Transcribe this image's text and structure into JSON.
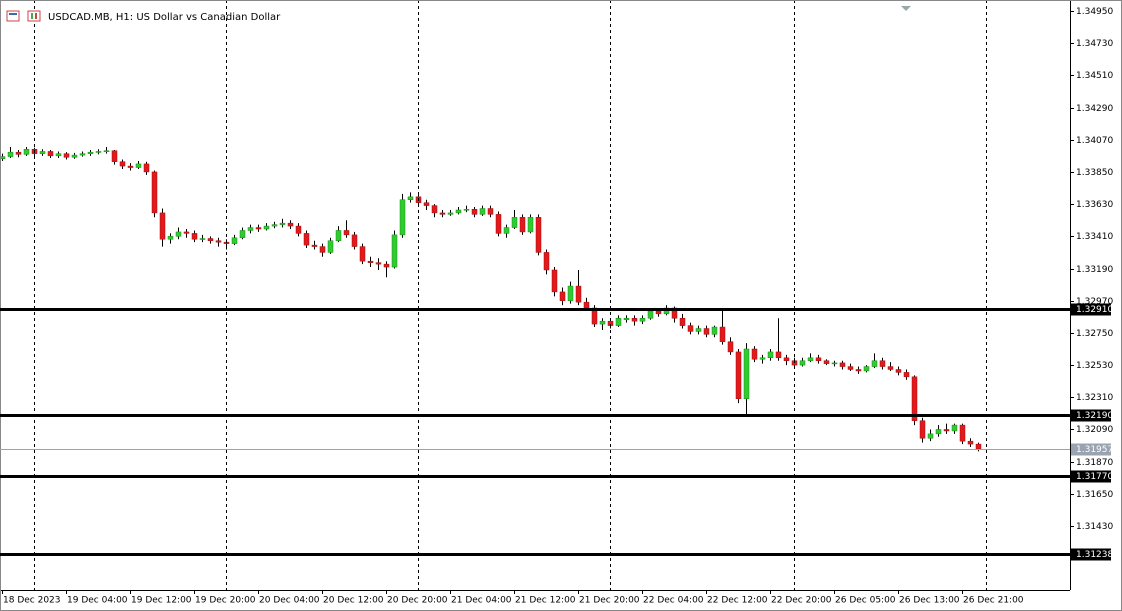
{
  "chart_data": {
    "type": "candlestick",
    "title": "USDCAD.MB, H1:  US Dollar vs Canadian Dollar",
    "up_color": "#2ecc2e",
    "down_color": "#e3191b",
    "grid": false,
    "ylim": [
      1.30993,
      1.35025
    ],
    "yticks": [
      {
        "value": 1.3495,
        "label": "1.34950"
      },
      {
        "value": 1.3473,
        "label": "1.34730"
      },
      {
        "value": 1.3451,
        "label": "1.34510"
      },
      {
        "value": 1.3429,
        "label": "1.34290"
      },
      {
        "value": 1.3407,
        "label": "1.34070"
      },
      {
        "value": 1.3385,
        "label": "1.33850"
      },
      {
        "value": 1.3363,
        "label": "1.33630"
      },
      {
        "value": 1.3341,
        "label": "1.33410"
      },
      {
        "value": 1.3319,
        "label": "1.33190"
      },
      {
        "value": 1.3297,
        "label": "1.32970"
      },
      {
        "value": 1.3275,
        "label": "1.32750"
      },
      {
        "value": 1.3253,
        "label": "1.32530"
      },
      {
        "value": 1.3231,
        "label": "1.32310"
      },
      {
        "value": 1.3209,
        "label": "1.32090"
      },
      {
        "value": 1.3187,
        "label": "1.31870"
      },
      {
        "value": 1.3165,
        "label": "1.31650"
      },
      {
        "value": 1.3143,
        "label": "1.31430"
      }
    ],
    "levels": [
      {
        "value": 1.3291,
        "label": "1.32910"
      },
      {
        "value": 1.3219,
        "label": "1.32190"
      },
      {
        "value": 1.3177,
        "label": "1.31770"
      },
      {
        "value": 1.31238,
        "label": "1.31238"
      }
    ],
    "current_price": {
      "value": 1.31957,
      "label": "1.31957"
    },
    "categories": [
      "18 Dec 2023",
      null,
      null,
      null,
      null,
      null,
      null,
      null,
      "19 Dec 04:00",
      null,
      null,
      null,
      null,
      null,
      null,
      null,
      "19 Dec 12:00",
      null,
      null,
      null,
      null,
      null,
      null,
      null,
      "19 Dec 20:00",
      null,
      null,
      null,
      null,
      null,
      null,
      null,
      "20 Dec 04:00",
      null,
      null,
      null,
      null,
      null,
      null,
      null,
      "20 Dec 12:00",
      null,
      null,
      null,
      null,
      null,
      null,
      null,
      "20 Dec 20:00",
      null,
      null,
      null,
      null,
      null,
      null,
      null,
      "21 Dec 04:00",
      null,
      null,
      null,
      null,
      null,
      null,
      null,
      "21 Dec 12:00",
      null,
      null,
      null,
      null,
      null,
      null,
      null,
      "21 Dec 20:00",
      null,
      null,
      null,
      null,
      null,
      null,
      null,
      "22 Dec 04:00",
      null,
      null,
      null,
      null,
      null,
      null,
      null,
      "22 Dec 12:00",
      null,
      null,
      null,
      null,
      null,
      null,
      null,
      "22 Dec 20:00",
      null,
      null,
      null,
      null,
      null,
      null,
      null,
      "26 Dec 05:00",
      null,
      null,
      null,
      null,
      null,
      null,
      null,
      "26 Dec 13:00",
      null,
      null,
      null,
      null,
      null,
      null,
      null,
      "26 Dec 21:00",
      null,
      null
    ],
    "ohlc": [
      [
        1.3394,
        1.33975,
        1.33925,
        1.33955
      ],
      [
        1.33955,
        1.3402,
        1.33945,
        1.33985
      ],
      [
        1.33985,
        1.34,
        1.3395,
        1.3397
      ],
      [
        1.3397,
        1.3402,
        1.3396,
        1.34005
      ],
      [
        1.34005,
        1.34015,
        1.3396,
        1.33975
      ],
      [
        1.33975,
        1.34005,
        1.3396,
        1.3399
      ],
      [
        1.3399,
        1.34,
        1.33945,
        1.3396
      ],
      [
        1.3396,
        1.3399,
        1.33945,
        1.33975
      ],
      [
        1.33975,
        1.33985,
        1.33935,
        1.3395
      ],
      [
        1.3395,
        1.3398,
        1.3394,
        1.33965
      ],
      [
        1.33965,
        1.3399,
        1.33955,
        1.33975
      ],
      [
        1.33975,
        1.34,
        1.3396,
        1.33985
      ],
      [
        1.33985,
        1.34005,
        1.3397,
        1.3399
      ],
      [
        1.3399,
        1.3402,
        1.33975,
        1.33995
      ],
      [
        1.33995,
        1.34,
        1.339,
        1.3392
      ],
      [
        1.3392,
        1.33935,
        1.3387,
        1.3389
      ],
      [
        1.3389,
        1.3391,
        1.3386,
        1.3388
      ],
      [
        1.3388,
        1.33925,
        1.3387,
        1.33905
      ],
      [
        1.33905,
        1.3392,
        1.3383,
        1.3385
      ],
      [
        1.3385,
        1.3386,
        1.3354,
        1.3357
      ],
      [
        1.3357,
        1.336,
        1.3334,
        1.3339
      ],
      [
        1.3339,
        1.3343,
        1.3336,
        1.3341
      ],
      [
        1.3341,
        1.3347,
        1.3339,
        1.3344
      ],
      [
        1.3344,
        1.3346,
        1.334,
        1.3343
      ],
      [
        1.3343,
        1.3345,
        1.3337,
        1.3339
      ],
      [
        1.3339,
        1.3342,
        1.3337,
        1.33395
      ],
      [
        1.33395,
        1.3341,
        1.3336,
        1.3338
      ],
      [
        1.3338,
        1.334,
        1.3334,
        1.3337
      ],
      [
        1.3337,
        1.3339,
        1.3332,
        1.3336
      ],
      [
        1.3336,
        1.3342,
        1.3335,
        1.334
      ],
      [
        1.334,
        1.3347,
        1.3339,
        1.3345
      ],
      [
        1.3345,
        1.3349,
        1.3343,
        1.3347
      ],
      [
        1.3347,
        1.3349,
        1.3344,
        1.3346
      ],
      [
        1.3346,
        1.335,
        1.3345,
        1.3348
      ],
      [
        1.3348,
        1.3351,
        1.33465,
        1.3349
      ],
      [
        1.3349,
        1.3353,
        1.3347,
        1.335
      ],
      [
        1.335,
        1.3352,
        1.3346,
        1.3348
      ],
      [
        1.3348,
        1.335,
        1.3341,
        1.3343
      ],
      [
        1.3343,
        1.3345,
        1.3333,
        1.3335
      ],
      [
        1.3335,
        1.3338,
        1.3332,
        1.3334
      ],
      [
        1.3334,
        1.3336,
        1.3327,
        1.333
      ],
      [
        1.333,
        1.334,
        1.3329,
        1.3338
      ],
      [
        1.3338,
        1.3348,
        1.3337,
        1.3345
      ],
      [
        1.3345,
        1.3352,
        1.334,
        1.3342
      ],
      [
        1.3342,
        1.3344,
        1.3332,
        1.3334
      ],
      [
        1.3334,
        1.3336,
        1.3322,
        1.3324
      ],
      [
        1.3324,
        1.3327,
        1.332,
        1.3323
      ],
      [
        1.3323,
        1.3326,
        1.3318,
        1.3322
      ],
      [
        1.3322,
        1.3324,
        1.3313,
        1.332
      ],
      [
        1.332,
        1.3345,
        1.3319,
        1.3342
      ],
      [
        1.3342,
        1.337,
        1.334,
        1.3366
      ],
      [
        1.3366,
        1.3371,
        1.3364,
        1.3368
      ],
      [
        1.3368,
        1.337,
        1.3362,
        1.3364
      ],
      [
        1.3364,
        1.3366,
        1.3359,
        1.3362
      ],
      [
        1.3362,
        1.3363,
        1.3354,
        1.3357
      ],
      [
        1.3357,
        1.3359,
        1.3354,
        1.3356
      ],
      [
        1.3356,
        1.3359,
        1.3355,
        1.3357
      ],
      [
        1.3357,
        1.3361,
        1.3356,
        1.3359
      ],
      [
        1.3359,
        1.3362,
        1.33575,
        1.33595
      ],
      [
        1.33595,
        1.3361,
        1.3354,
        1.3356
      ],
      [
        1.3356,
        1.3362,
        1.3355,
        1.336
      ],
      [
        1.336,
        1.3362,
        1.3354,
        1.3356
      ],
      [
        1.3356,
        1.3358,
        1.3341,
        1.3343
      ],
      [
        1.3343,
        1.3349,
        1.334,
        1.3347
      ],
      [
        1.3347,
        1.3359,
        1.3346,
        1.3354
      ],
      [
        1.3354,
        1.3356,
        1.3342,
        1.3344
      ],
      [
        1.3344,
        1.3356,
        1.3343,
        1.3354
      ],
      [
        1.3354,
        1.3356,
        1.3328,
        1.333
      ],
      [
        1.333,
        1.3332,
        1.3315,
        1.3318
      ],
      [
        1.3318,
        1.332,
        1.33,
        1.3303
      ],
      [
        1.3303,
        1.3306,
        1.3294,
        1.3297
      ],
      [
        1.3297,
        1.331,
        1.3295,
        1.3307
      ],
      [
        1.3307,
        1.3318,
        1.3294,
        1.3296
      ],
      [
        1.3296,
        1.3299,
        1.329,
        1.3292
      ],
      [
        1.3292,
        1.3294,
        1.3279,
        1.3281
      ],
      [
        1.3281,
        1.3285,
        1.3277,
        1.3283
      ],
      [
        1.3283,
        1.3285,
        1.3278,
        1.328
      ],
      [
        1.328,
        1.3287,
        1.3279,
        1.3285
      ],
      [
        1.3284,
        1.3287,
        1.3282,
        1.3285
      ],
      [
        1.3285,
        1.3287,
        1.328,
        1.3283
      ],
      [
        1.3283,
        1.3287,
        1.3281,
        1.3285
      ],
      [
        1.3285,
        1.3292,
        1.3284,
        1.329
      ],
      [
        1.329,
        1.3292,
        1.3286,
        1.3288
      ],
      [
        1.3288,
        1.3294,
        1.3287,
        1.3292
      ],
      [
        1.3292,
        1.3293,
        1.3282,
        1.3285
      ],
      [
        1.3285,
        1.3288,
        1.3278,
        1.328
      ],
      [
        1.328,
        1.3282,
        1.3274,
        1.3276
      ],
      [
        1.3276,
        1.328,
        1.3274,
        1.3278
      ],
      [
        1.3278,
        1.328,
        1.3272,
        1.3274
      ],
      [
        1.3274,
        1.328,
        1.3272,
        1.3279
      ],
      [
        1.3279,
        1.3292,
        1.3267,
        1.3269
      ],
      [
        1.3269,
        1.3272,
        1.326,
        1.3262
      ],
      [
        1.3262,
        1.3264,
        1.3227,
        1.323
      ],
      [
        1.323,
        1.3268,
        1.3219,
        1.3264
      ],
      [
        1.3264,
        1.3266,
        1.3255,
        1.3257
      ],
      [
        1.3257,
        1.326,
        1.3254,
        1.3258
      ],
      [
        1.3258,
        1.3264,
        1.3256,
        1.3262
      ],
      [
        1.3262,
        1.3285,
        1.3256,
        1.3258
      ],
      [
        1.3258,
        1.326,
        1.3253,
        1.3256
      ],
      [
        1.3256,
        1.3258,
        1.3251,
        1.3253
      ],
      [
        1.3253,
        1.3258,
        1.3252,
        1.3256
      ],
      [
        1.3256,
        1.3261,
        1.3255,
        1.3258
      ],
      [
        1.3258,
        1.326,
        1.3254,
        1.3256
      ],
      [
        1.3256,
        1.3257,
        1.3253,
        1.3254
      ],
      [
        1.3254,
        1.3256,
        1.3252,
        1.32545
      ],
      [
        1.32545,
        1.3256,
        1.325,
        1.3252
      ],
      [
        1.3252,
        1.3254,
        1.3249,
        1.325
      ],
      [
        1.325,
        1.3252,
        1.3247,
        1.3249
      ],
      [
        1.3249,
        1.3253,
        1.3248,
        1.3252
      ],
      [
        1.3252,
        1.3261,
        1.3251,
        1.3256
      ],
      [
        1.3256,
        1.3258,
        1.325,
        1.3252
      ],
      [
        1.3252,
        1.3255,
        1.3249,
        1.325
      ],
      [
        1.325,
        1.3252,
        1.3246,
        1.3248
      ],
      [
        1.3248,
        1.325,
        1.3243,
        1.3245
      ],
      [
        1.3245,
        1.3246,
        1.3212,
        1.3215
      ],
      [
        1.3215,
        1.3217,
        1.32,
        1.3203
      ],
      [
        1.3203,
        1.3209,
        1.3201,
        1.3206
      ],
      [
        1.3206,
        1.3212,
        1.3204,
        1.3209
      ],
      [
        1.3209,
        1.3213,
        1.3206,
        1.3208
      ],
      [
        1.3208,
        1.3213,
        1.3206,
        1.3212
      ],
      [
        1.3212,
        1.3213,
        1.3199,
        1.3201
      ],
      [
        1.3201,
        1.3203,
        1.3197,
        1.3199
      ],
      [
        1.3199,
        1.32,
        1.3194,
        1.31957
      ]
    ]
  }
}
